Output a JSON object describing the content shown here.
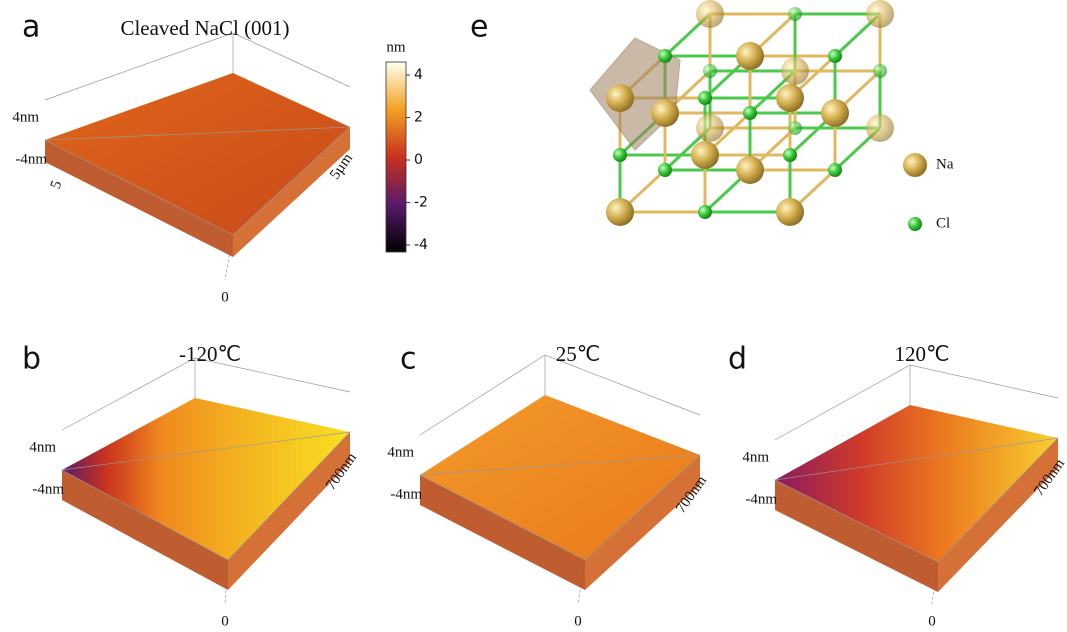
{
  "panels": [
    {
      "letter": "a",
      "title": "Cleaved NaCl (001)",
      "z_top": "4nm",
      "z_bottom": "-4nm",
      "x_end": "5",
      "y_end": "5µm",
      "origin": "0"
    },
    {
      "letter": "b",
      "title": "-120℃",
      "z_top": "4nm",
      "z_bottom": "-4nm",
      "y_end": "700nm",
      "origin": "0"
    },
    {
      "letter": "c",
      "title": "25℃",
      "z_top": "4nm",
      "z_bottom": "-4nm",
      "y_end": "700nm",
      "origin": "0"
    },
    {
      "letter": "d",
      "title": "120℃",
      "z_top": "4nm",
      "z_bottom": "-4nm",
      "y_end": "700nm",
      "origin": "0"
    }
  ],
  "colorbar": {
    "unit": "nm",
    "ticks": [
      4,
      2,
      0,
      -2,
      -4
    ]
  },
  "structure": {
    "letter": "e",
    "legend": [
      "Na",
      "Cl"
    ]
  }
}
